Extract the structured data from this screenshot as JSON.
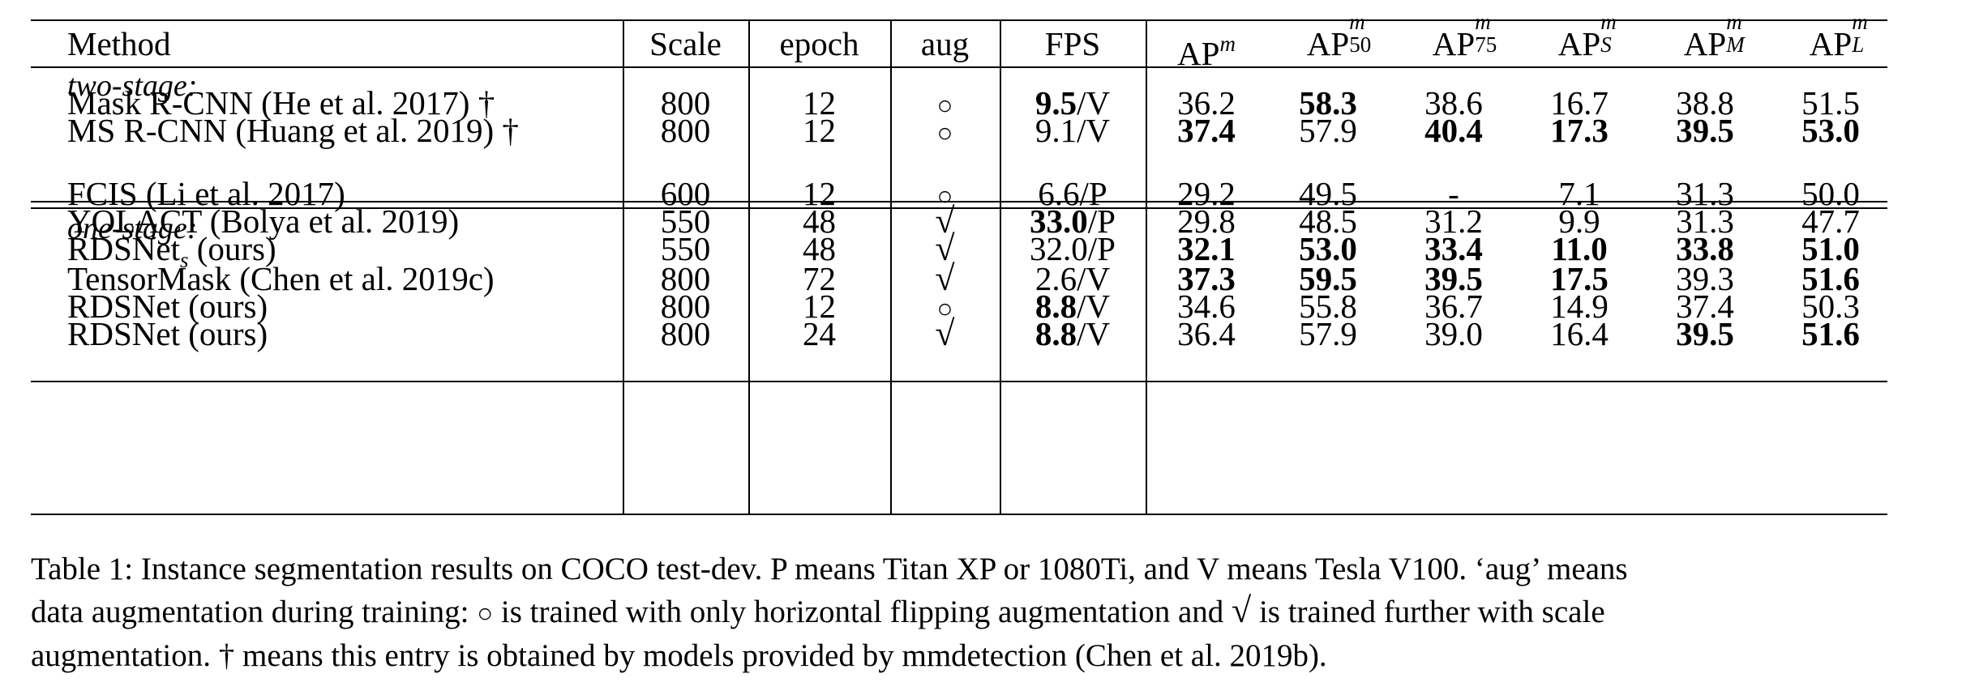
{
  "header": {
    "method": "Method",
    "scale": "Scale",
    "epoch": "epoch",
    "aug": "aug",
    "fps": "FPS",
    "ap": {
      "base": "AP",
      "sup": "m"
    },
    "ap50": {
      "base": "AP",
      "sup": "m",
      "sub": "50"
    },
    "ap75": {
      "base": "AP",
      "sup": "m",
      "sub": "75"
    },
    "apS": {
      "base": "AP",
      "sup": "m",
      "sub": "S"
    },
    "apM": {
      "base": "AP",
      "sup": "m",
      "sub": "M"
    },
    "apL": {
      "base": "AP",
      "sup": "m",
      "sub": "L"
    }
  },
  "groups": {
    "two_stage": "two-stage:",
    "one_stage": "one-stage:"
  },
  "rows": [
    {
      "method": "Mask R-CNN (He et al. 2017) †",
      "scale": "800",
      "epoch": "12",
      "aug": "○",
      "fps_num": "9.5",
      "fps_unit": "/V",
      "ap": "36.2",
      "ap50": "58.3",
      "ap75": "38.6",
      "apS": "16.7",
      "apM": "38.8",
      "apL": "51.5"
    },
    {
      "method": "MS R-CNN (Huang et al. 2019) †",
      "scale": "800",
      "epoch": "12",
      "aug": "○",
      "fps_num": "9.1",
      "fps_unit": "/V",
      "ap": "37.4",
      "ap50": "57.9",
      "ap75": "40.4",
      "apS": "17.3",
      "apM": "39.5",
      "apL": "53.0"
    },
    {
      "method": "FCIS (Li et al. 2017)",
      "scale": "600",
      "epoch": "12",
      "aug": "○",
      "fps_num": "6.6",
      "fps_unit": "/P",
      "ap": "29.2",
      "ap50": "49.5",
      "ap75": "-",
      "apS": "7.1",
      "apM": "31.3",
      "apL": "50.0"
    },
    {
      "method": "YOLACT (Bolya et al. 2019)",
      "scale": "550",
      "epoch": "48",
      "aug": "√",
      "fps_num": "33.0",
      "fps_unit": "/P",
      "ap": "29.8",
      "ap50": "48.5",
      "ap75": "31.2",
      "apS": "9.9",
      "apM": "31.3",
      "apL": "47.7"
    },
    {
      "method_main": "RDSNet",
      "method_sub": "s",
      "method_rest": " (ours)",
      "scale": "550",
      "epoch": "48",
      "aug": "√",
      "fps_num": "32.0",
      "fps_unit": "/P",
      "ap": "32.1",
      "ap50": "53.0",
      "ap75": "33.4",
      "apS": "11.0",
      "apM": "33.8",
      "apL": "51.0"
    },
    {
      "method": "TensorMask (Chen et al. 2019c)",
      "scale": "800",
      "epoch": "72",
      "aug": "√",
      "fps_num": "2.6",
      "fps_unit": "/V",
      "ap": "37.3",
      "ap50": "59.5",
      "ap75": "39.5",
      "apS": "17.5",
      "apM": "39.3",
      "apL": "51.6"
    },
    {
      "method": "RDSNet (ours)",
      "scale": "800",
      "epoch": "12",
      "aug": "○",
      "fps_num": "8.8",
      "fps_unit": "/V",
      "ap": "34.6",
      "ap50": "55.8",
      "ap75": "36.7",
      "apS": "14.9",
      "apM": "37.4",
      "apL": "50.3"
    },
    {
      "method": "RDSNet (ours)",
      "scale": "800",
      "epoch": "24",
      "aug": "√",
      "fps_num": "8.8",
      "fps_unit": "/V",
      "ap": "36.4",
      "ap50": "57.9",
      "ap75": "39.0",
      "apS": "16.4",
      "apM": "39.5",
      "apL": "51.6"
    }
  ],
  "caption": {
    "line1": "Table 1: Instance segmentation results on COCO test-dev. P means Titan XP or 1080Ti, and V means Tesla V100. ‘aug’ means",
    "line2a": "data augmentation during training: ",
    "line2_circle": "○",
    "line2b": " is trained with only horizontal flipping augmentation and ",
    "line2_check": "√",
    "line2c": " is trained further with scale",
    "line3": "augmentation. † means this entry is obtained by models provided by mmdetection (Chen et al. 2019b)."
  }
}
